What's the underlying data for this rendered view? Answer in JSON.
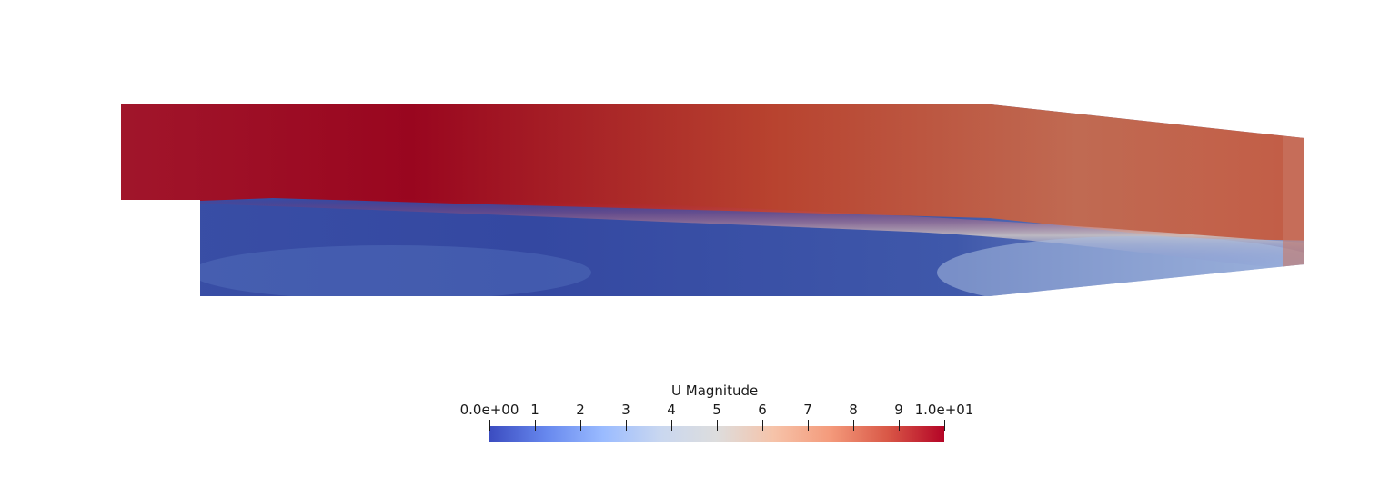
{
  "render": {
    "colormap": [
      "#3b4cc0",
      "#6788ee",
      "#9abbff",
      "#c9d7f0",
      "#dddddd",
      "#f6c3a9",
      "#f49a7b",
      "#d95847",
      "#b40426"
    ]
  },
  "legend": {
    "title": "U Magnitude",
    "min": 0,
    "max": 10,
    "tick_labels": [
      "0.0e+00",
      "1",
      "2",
      "3",
      "4",
      "5",
      "6",
      "7",
      "8",
      "9",
      "1.0e+01"
    ],
    "tick_values": [
      0,
      1,
      2,
      3,
      4,
      5,
      6,
      7,
      8,
      9,
      10
    ]
  }
}
